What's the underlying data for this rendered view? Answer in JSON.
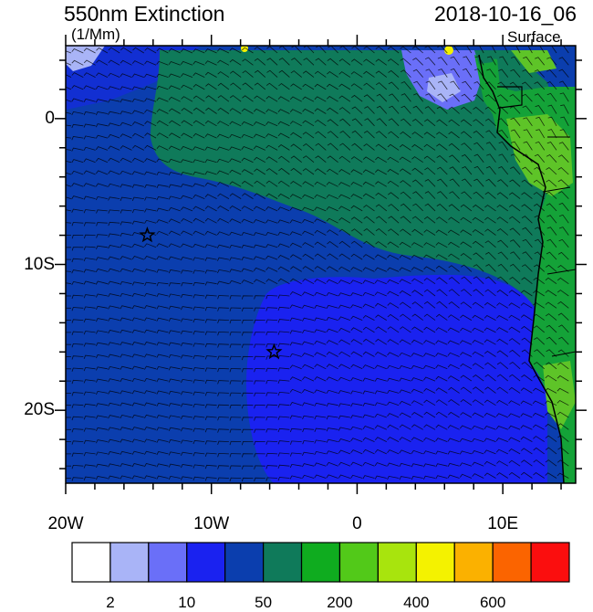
{
  "header": {
    "title": "550nm Extinction",
    "units": "(1/Mm)",
    "datetime": "2018-10-16_06",
    "level": "Surface"
  },
  "map": {
    "lon_range": [
      -20,
      15
    ],
    "lat_range": [
      -25,
      5
    ],
    "x_ticks": [
      {
        "value": -20,
        "label": "20W"
      },
      {
        "value": -10,
        "label": "10W"
      },
      {
        "value": 0,
        "label": "0"
      },
      {
        "value": 10,
        "label": "10E"
      }
    ],
    "y_ticks": [
      {
        "value": 0,
        "label": "0"
      },
      {
        "value": -10,
        "label": "10S"
      },
      {
        "value": -20,
        "label": "20S"
      }
    ],
    "markers": [
      {
        "name": "star",
        "lon": -14.4,
        "lat": -8.0
      },
      {
        "name": "star",
        "lon": -5.7,
        "lat": -16.0
      }
    ],
    "overlay": "wind-barbs",
    "region_colors": {
      "ocean_dark": "#0b3eae",
      "ocean_blue": "#1a22f0",
      "plume_teal": "#0f7a5a",
      "land_green": "#14a238",
      "land_light": "#5ec428"
    }
  },
  "colorbar": {
    "colors": [
      "#ffffff",
      "#a9b4f7",
      "#6a6ff8",
      "#1a22f0",
      "#0b3eae",
      "#0f7a5a",
      "#0fac1f",
      "#52c919",
      "#a8e40d",
      "#f4f200",
      "#fbb100",
      "#fb6400",
      "#fb0e0e"
    ],
    "labels": [
      {
        "boundary": 1,
        "text": "2"
      },
      {
        "boundary": 3,
        "text": "10"
      },
      {
        "boundary": 5,
        "text": "50"
      },
      {
        "boundary": 7,
        "text": "200"
      },
      {
        "boundary": 9,
        "text": "400"
      },
      {
        "boundary": 11,
        "text": "600"
      }
    ]
  }
}
